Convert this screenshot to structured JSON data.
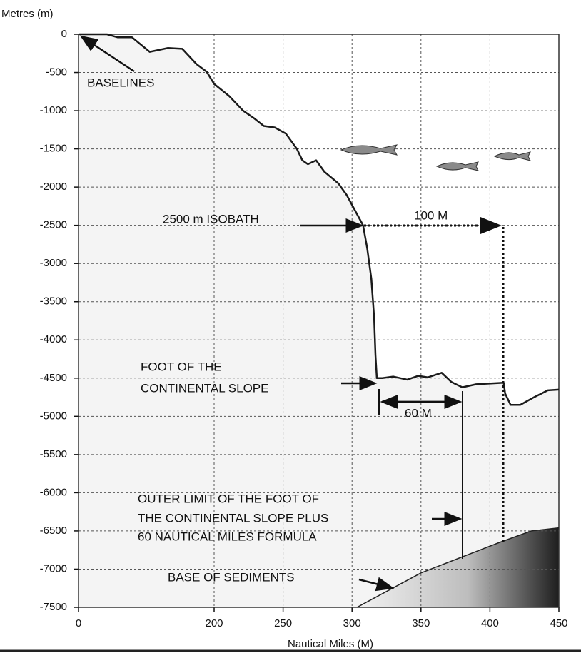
{
  "chart_data": {
    "type": "line",
    "ylabel": "Metres (m)",
    "xlabel": "Nautical Miles (M)",
    "xlim": [
      0,
      450
    ],
    "xticks": [
      0,
      200,
      250,
      300,
      350,
      400,
      450
    ],
    "ylim": [
      -7500,
      0
    ],
    "yticks": [
      0,
      -500,
      -1000,
      -1500,
      -2000,
      -2500,
      -3000,
      -3500,
      -4000,
      -4500,
      -5000,
      -5500,
      -6000,
      -6500,
      -7000,
      -7500
    ],
    "grid": true,
    "series": [
      {
        "color": "#1a1a1a",
        "x": [
          0,
          42,
          58,
          79,
          105,
          132,
          153,
          174,
          189,
          200,
          211,
          221,
          229,
          236,
          244,
          252,
          260,
          264,
          268,
          274,
          280,
          290,
          296,
          302,
          308,
          311,
          314,
          316,
          317,
          318,
          322,
          330,
          340,
          348,
          355,
          365,
          372,
          380,
          390,
          410,
          411,
          415,
          422,
          432,
          442,
          450
        ],
        "values": [
          0,
          0,
          -40,
          -40,
          -230,
          -180,
          -190,
          -390,
          -490,
          -650,
          -810,
          -1000,
          -1100,
          -1200,
          -1220,
          -1300,
          -1500,
          -1650,
          -1700,
          -1650,
          -1800,
          -1950,
          -2100,
          -2300,
          -2500,
          -2800,
          -3200,
          -3700,
          -4200,
          -4500,
          -4500,
          -4480,
          -4520,
          -4470,
          -4490,
          -4430,
          -4550,
          -4620,
          -4580,
          -4560,
          -4700,
          -4850,
          -4850,
          -4750,
          -4660,
          -4650
        ]
      },
      {
        "color": "#222222",
        "x": [
          303.6,
          350,
          407,
          430,
          450
        ],
        "values": [
          -7500,
          -7050,
          -6650,
          -6500,
          -6460
        ]
      }
    ],
    "annotations": [
      "BASELINES",
      "2500 m ISOBATH",
      "100 M",
      "FOOT OF THE",
      "CONTINENTAL SLOPE",
      "60 M",
      "OUTER LIMIT OF THE FOOT OF",
      "THE CONTINENTAL SLOPE PLUS",
      "60 NAUTICAL MILES FORMULA",
      "BASE OF SEDIMENTS"
    ]
  }
}
